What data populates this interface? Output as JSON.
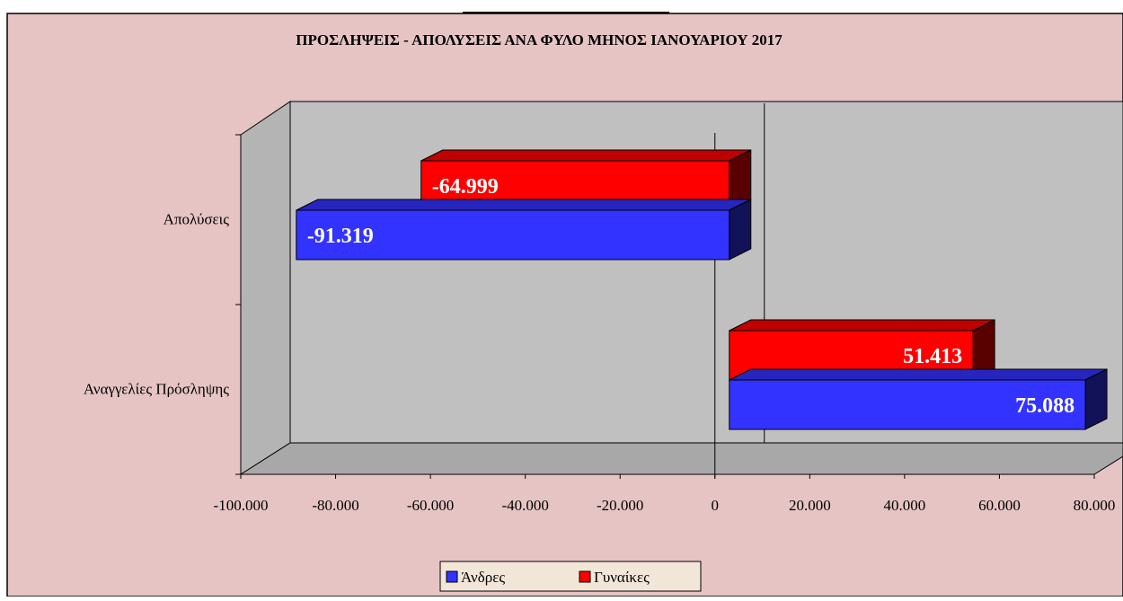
{
  "chart_data": {
    "type": "bar3d_horizontal",
    "title": "ΠΡΟΣΛΗΨΕΙΣ - ΑΠΟΛΥΣΕΙΣ ΑΝΑ ΦΥΛΟ ΜΗΝΟΣ  ΙΑΝΟΥΑΡΙΟΥ 2017",
    "categories": [
      "Απολύσεις",
      "Αναγγελίες Πρόσληψης"
    ],
    "series": [
      {
        "name": "Άνδρες",
        "color": "#3333ff",
        "values": [
          -91319,
          75088
        ],
        "value_labels": [
          "-91.319",
          "75.088"
        ]
      },
      {
        "name": "Γυναίκες",
        "color": "#ff0000",
        "values": [
          -64999,
          51413
        ],
        "value_labels": [
          "-64.999",
          "51.413"
        ]
      }
    ],
    "xlim": [
      -100000,
      80000
    ],
    "xticks": [
      {
        "value": -100000,
        "label": "-100.000"
      },
      {
        "value": -80000,
        "label": "-80.000"
      },
      {
        "value": -60000,
        "label": "-60.000"
      },
      {
        "value": -40000,
        "label": "-40.000"
      },
      {
        "value": -20000,
        "label": "-20.000"
      },
      0,
      {
        "value": 20000,
        "label": "20.000"
      },
      {
        "value": 40000,
        "label": "40.000"
      },
      {
        "value": 60000,
        "label": "60.000"
      },
      {
        "value": 80000,
        "label": "80.000"
      }
    ],
    "legend": "bottom"
  }
}
